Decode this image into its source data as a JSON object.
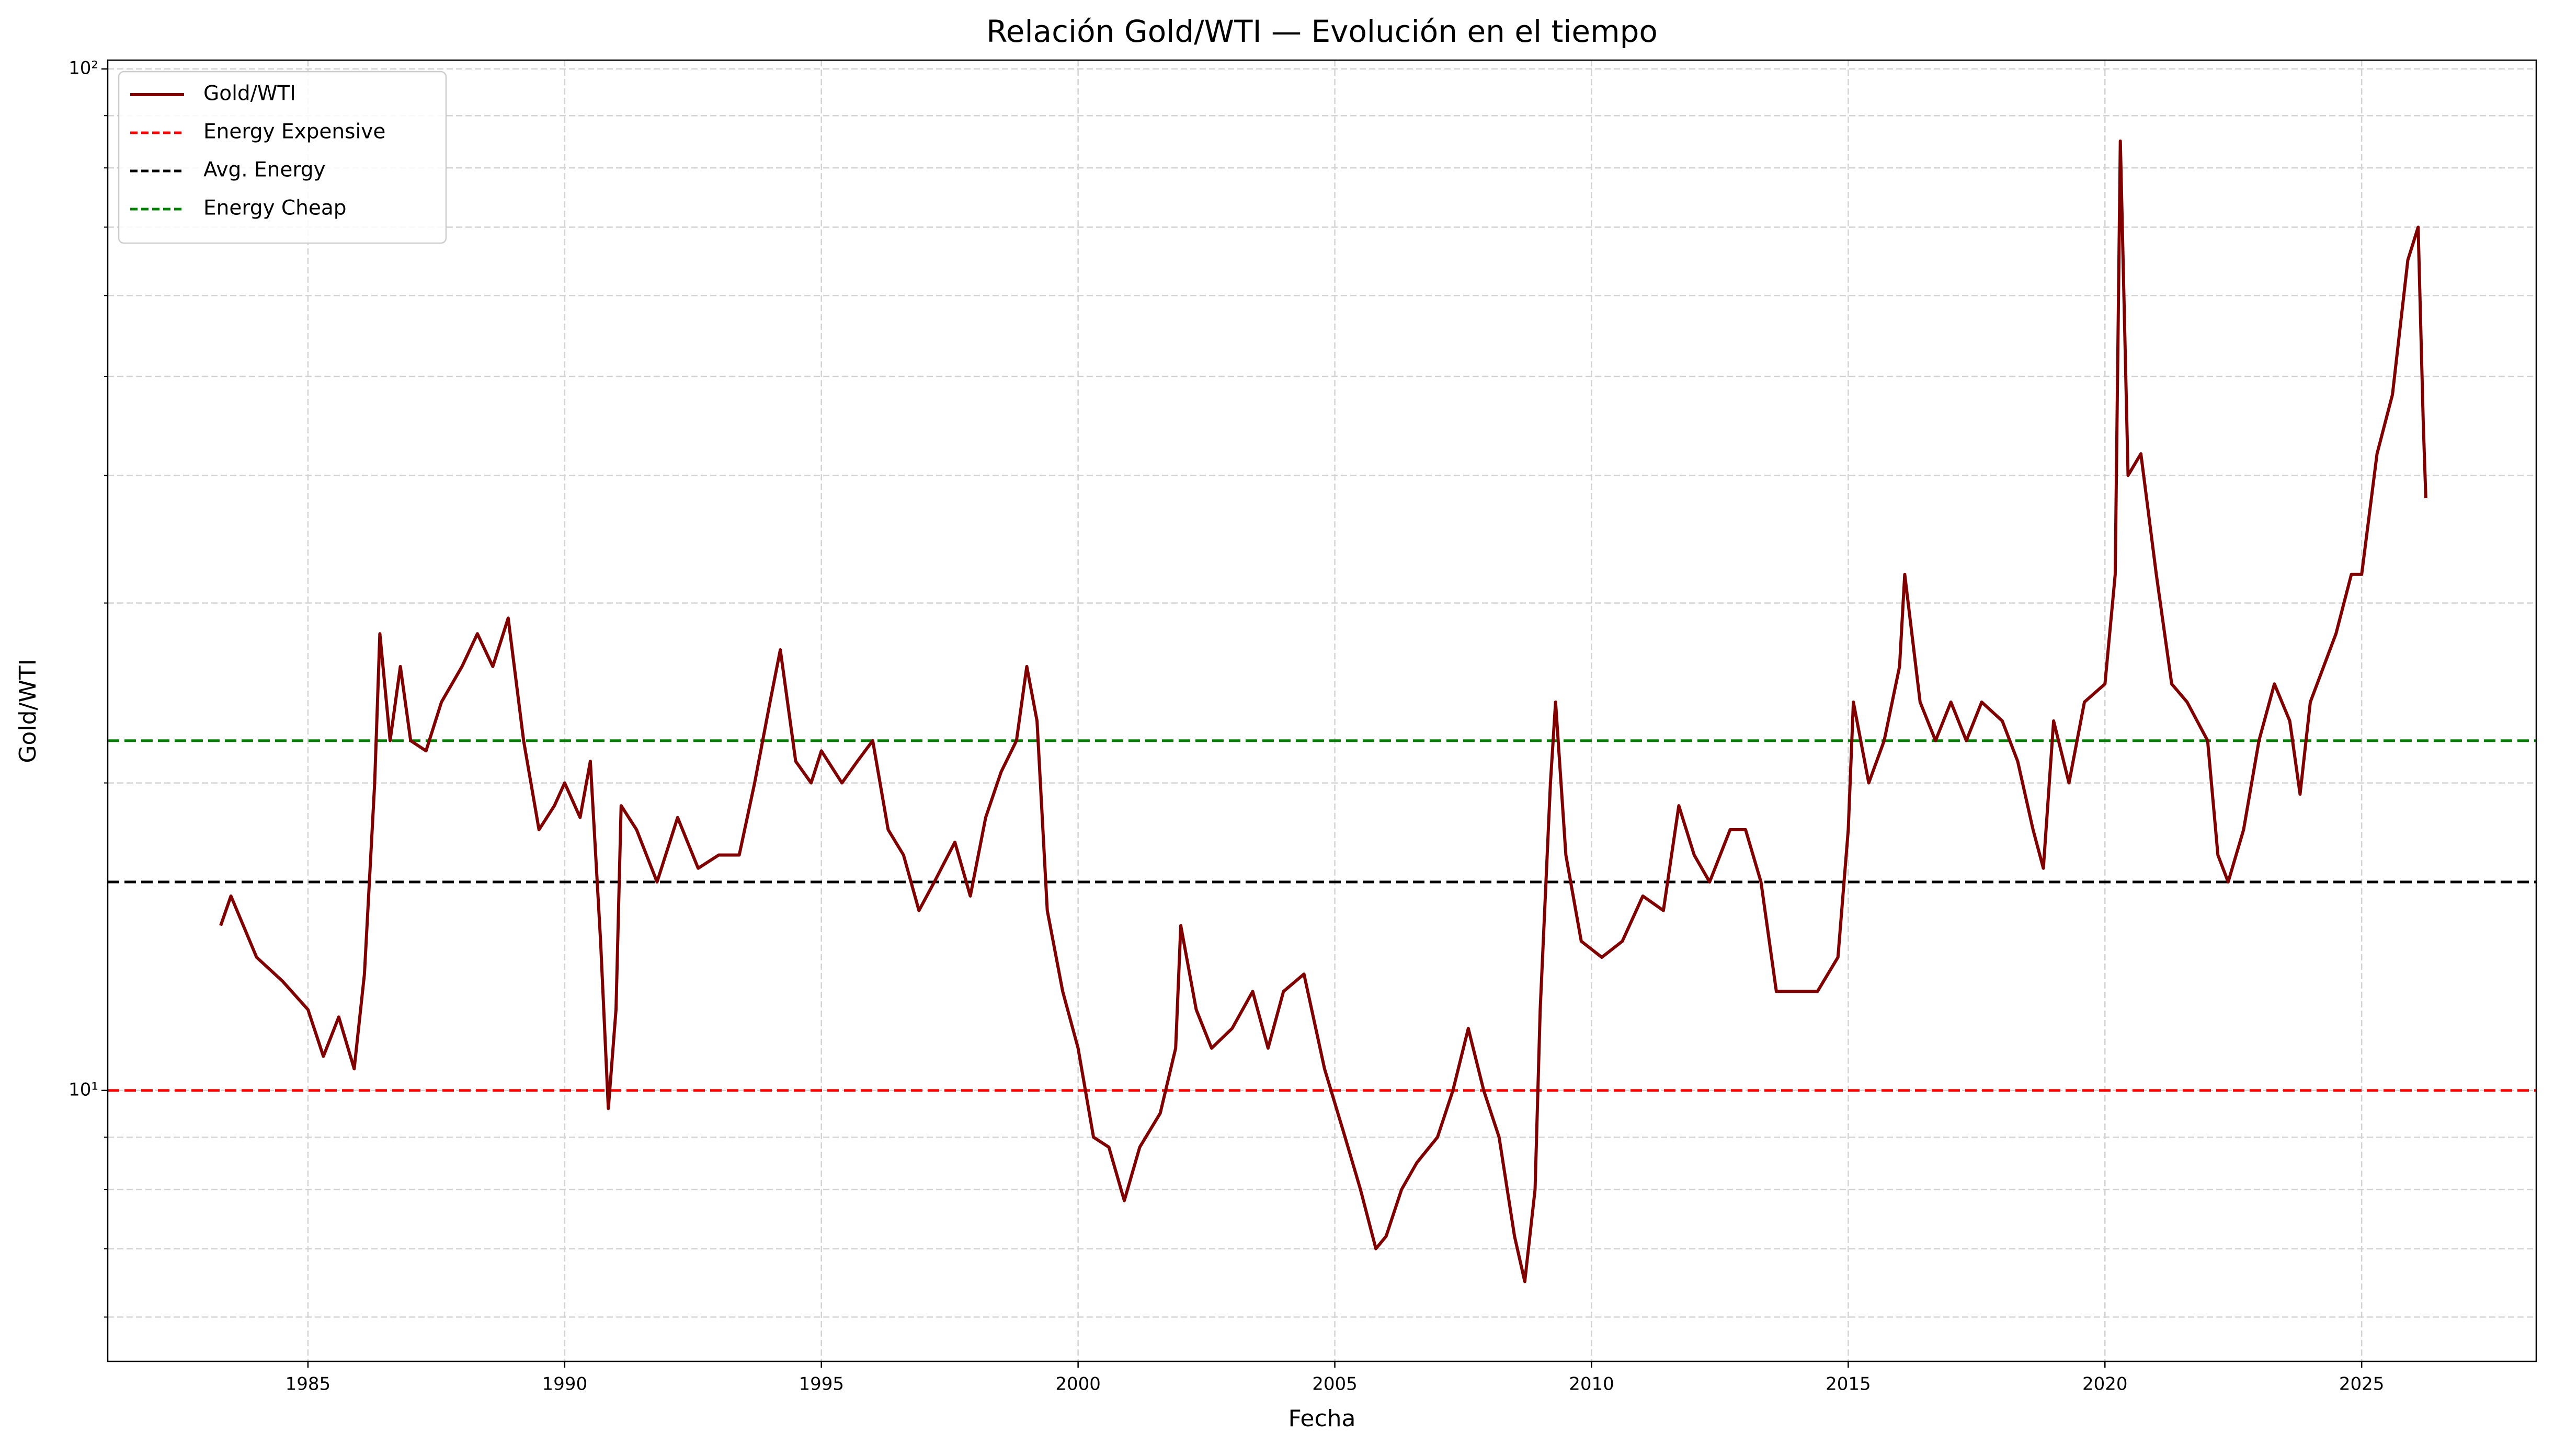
{
  "chart_data": {
    "type": "line",
    "title": "Relación Gold/WTI — Evolución en el tiempo",
    "xlabel": "Fecha",
    "ylabel": "Gold/WTI",
    "log_y": true,
    "grid": true,
    "legend": "upper left",
    "xlim": [
      1981.1,
      2028.4
    ],
    "xticks": [
      1985,
      1990,
      1995,
      2000,
      2005,
      2010,
      2015,
      2020,
      2025
    ],
    "ylim": [
      5.43,
      102
    ],
    "yticks": [
      {
        "value": 10,
        "label": "10¹"
      },
      {
        "value": 100,
        "label": "10²"
      }
    ],
    "yminor_ticks": [
      6,
      7,
      8,
      9,
      20,
      30,
      40,
      50,
      60,
      70,
      80,
      90
    ],
    "series": [
      {
        "name": "Gold/WTI",
        "color": "#800000",
        "x": [
          1983.3,
          1983.5,
          1984,
          1984.5,
          1985,
          1985.3,
          1985.6,
          1985.9,
          1986.1,
          1986.3,
          1986.4,
          1986.6,
          1986.8,
          1987,
          1987.3,
          1987.6,
          1988,
          1988.3,
          1988.6,
          1988.9,
          1989.2,
          1989.5,
          1989.8,
          1990,
          1990.3,
          1990.5,
          1990.7,
          1990.85,
          1991,
          1991.1,
          1991.4,
          1991.8,
          1992.2,
          1992.6,
          1993,
          1993.4,
          1993.7,
          1994,
          1994.2,
          1994.5,
          1994.8,
          1995,
          1995.4,
          1995.7,
          1996,
          1996.3,
          1996.6,
          1996.9,
          1997.2,
          1997.6,
          1997.9,
          1998.2,
          1998.5,
          1998.8,
          1999,
          1999.2,
          1999.4,
          1999.7,
          2000,
          2000.3,
          2000.6,
          2000.9,
          2001.2,
          2001.6,
          2001.9,
          2002,
          2002.3,
          2002.6,
          2003,
          2003.4,
          2003.7,
          2004,
          2004.4,
          2004.8,
          2005.2,
          2005.5,
          2005.8,
          2006,
          2006.3,
          2006.6,
          2007,
          2007.3,
          2007.6,
          2007.9,
          2008.2,
          2008.5,
          2008.7,
          2008.9,
          2009,
          2009.2,
          2009.3,
          2009.5,
          2009.8,
          2010.2,
          2010.6,
          2011,
          2011.4,
          2011.7,
          2012,
          2012.3,
          2012.7,
          2013,
          2013.3,
          2013.6,
          2014,
          2014.4,
          2014.8,
          2015,
          2015.1,
          2015.4,
          2015.7,
          2016,
          2016.1,
          2016.4,
          2016.7,
          2017,
          2017.3,
          2017.6,
          2018,
          2018.3,
          2018.6,
          2018.8,
          2019,
          2019.3,
          2019.6,
          2020,
          2020.2,
          2020.3,
          2020.45,
          2020.7,
          2021,
          2021.3,
          2021.6,
          2022,
          2022.2,
          2022.4,
          2022.7,
          2023,
          2023.3,
          2023.6,
          2023.8,
          2024,
          2024.5,
          2024.8,
          2025,
          2025.3,
          2025.6,
          2025.9,
          2026.1,
          2026.2,
          2026.25
        ],
        "values": [
          14.5,
          15.5,
          13.5,
          12.8,
          12,
          10.8,
          11.8,
          10.5,
          13,
          20,
          28,
          22,
          26,
          22,
          21.5,
          24,
          26,
          28,
          26,
          29,
          22,
          18,
          19,
          20,
          18.5,
          21,
          14,
          9.6,
          12,
          19,
          18,
          16,
          18.5,
          16.5,
          17,
          17,
          20,
          24,
          27,
          21,
          20,
          21.5,
          20,
          21,
          22,
          18,
          17,
          15,
          16,
          17.5,
          15.5,
          18.5,
          20.5,
          22,
          26,
          23,
          15,
          12.5,
          11,
          9,
          8.8,
          7.8,
          8.8,
          9.5,
          11,
          14.5,
          12,
          11,
          11.5,
          12.5,
          11,
          12.5,
          13,
          10.5,
          9,
          8,
          7,
          7.2,
          8,
          8.5,
          9,
          10,
          11.5,
          10,
          9,
          7.2,
          6.5,
          8,
          12,
          20,
          24,
          17,
          14,
          13.5,
          14,
          15.5,
          15,
          19,
          17,
          16,
          18,
          18,
          16,
          12.5,
          12.5,
          12.5,
          13.5,
          18,
          24,
          20,
          22,
          26,
          32,
          24,
          22,
          24,
          22,
          24,
          23,
          21,
          18,
          16.5,
          23,
          20,
          24,
          25,
          32,
          85,
          40,
          42,
          32,
          25,
          24,
          22,
          17,
          16,
          18,
          22,
          25,
          23,
          19.5,
          24,
          28,
          32,
          32,
          42,
          48,
          65,
          70,
          45,
          38
        ]
      }
    ],
    "hlines": [
      {
        "name": "Energy Expensive",
        "value": 10,
        "color": "#ff0000"
      },
      {
        "name": "Avg. Energy",
        "value": 16,
        "color": "#000000"
      },
      {
        "name": "Energy Cheap",
        "value": 22,
        "color": "#008000"
      }
    ]
  }
}
